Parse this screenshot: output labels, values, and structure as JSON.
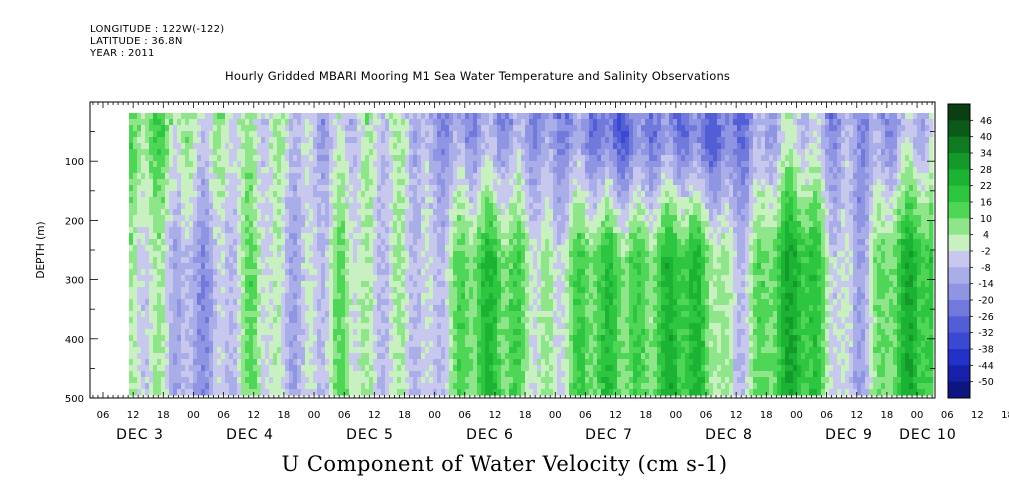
{
  "header": {
    "longitude": "LONGITUDE : 122W(-122)",
    "latitude": "LATITUDE : 36.8N",
    "year": "YEAR : 2011"
  },
  "title": "Hourly Gridded MBARI Mooring M1 Sea Water Temperature and Salinity Observations",
  "bottom_title": "U Component of Water Velocity (cm s-1)",
  "chart_data": {
    "type": "heatmap",
    "ylabel": "DEPTH (m)",
    "ylim": [
      500,
      0
    ],
    "y_ticks": [
      100,
      200,
      300,
      400,
      500
    ],
    "x_hour_ticks": [
      "06",
      "12",
      "18",
      "00",
      "06",
      "12",
      "18",
      "00",
      "06",
      "12",
      "18",
      "00",
      "06",
      "12",
      "18",
      "00",
      "06",
      "12",
      "18",
      "00",
      "06",
      "12",
      "18",
      "00",
      "06",
      "12",
      "18",
      "00",
      "06",
      "12",
      "18",
      "00"
    ],
    "x_day_labels": [
      "DEC  3",
      "DEC  4",
      "DEC  5",
      "DEC  6",
      "DEC  7",
      "DEC  8",
      "DEC  9",
      "DEC 10"
    ],
    "colorbar_levels": [
      "46",
      "40",
      "34",
      "28",
      "22",
      "16",
      "10",
      "4",
      "-2",
      "-8",
      "-14",
      "-20",
      "-26",
      "-32",
      "-38",
      "-44",
      "-50"
    ],
    "colorbar_colors": [
      "#0a3f12",
      "#0c5a1a",
      "#107a22",
      "#149a2a",
      "#1cb233",
      "#2ec640",
      "#4fd656",
      "#8ee58a",
      "#c8f0c0",
      "#c8c8ee",
      "#a9aee8",
      "#8f95e3",
      "#7279dc",
      "#525ed6",
      "#3a48d2",
      "#2331c8",
      "#1620a8",
      "#0c1580"
    ],
    "field_profile": {
      "times_hours": [
        12,
        18,
        24,
        30,
        36,
        42,
        48,
        54,
        60,
        66,
        72,
        78,
        84,
        90,
        96,
        102,
        108,
        114,
        120,
        126,
        132,
        138,
        144,
        150,
        156,
        162,
        168,
        174,
        180,
        186
      ],
      "upper_mean": [
        6,
        10,
        4,
        2,
        -4,
        2,
        -6,
        -8,
        -4,
        2,
        -12,
        -20,
        -14,
        -8,
        -18,
        -22,
        -26,
        -16,
        -24,
        -30,
        -18,
        -10,
        -6,
        -14,
        -8,
        -16,
        -10,
        -4,
        -6,
        2
      ],
      "lower_mean": [
        -4,
        -2,
        -10,
        -8,
        4,
        -6,
        -2,
        6,
        -8,
        4,
        -6,
        8,
        18,
        12,
        -2,
        10,
        18,
        14,
        20,
        12,
        -2,
        14,
        22,
        6,
        -8,
        12,
        20,
        8,
        4,
        2
      ]
    }
  }
}
